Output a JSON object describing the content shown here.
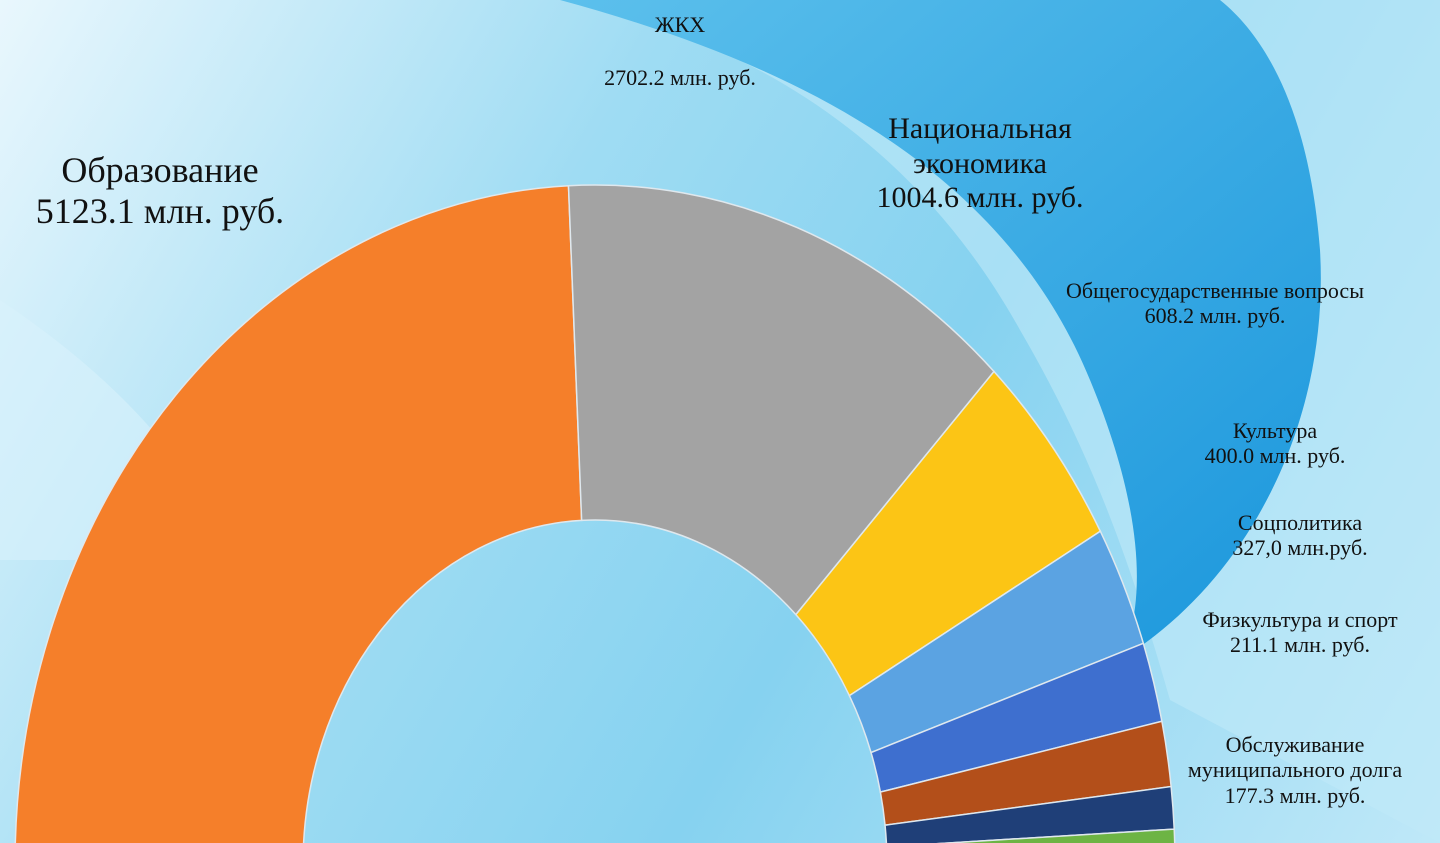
{
  "chart_data": {
    "type": "donut",
    "categories": [
      "Образование",
      "ЖКХ",
      "Национальная экономика",
      "Общегосударственные вопросы",
      "Культура",
      "Соцполитика",
      "Физкультура и спорт",
      "Обслуживание муниципального долга"
    ],
    "values": [
      5123.1,
      2702.2,
      1004.6,
      608.2,
      400.0,
      327.0,
      211.1,
      177.3
    ],
    "value_labels": [
      "5123.1 млн. руб.",
      "2702.2 млн. руб.",
      "1004.6 млн. руб.",
      "608.2 млн. руб.",
      "400.0 млн. руб.",
      "327,0 млн.руб.",
      "211.1 млн. руб.",
      "177.3 млн. руб."
    ],
    "colors": [
      "#f57f2a",
      "#a3a3a3",
      "#fcc515",
      "#5ba3e2",
      "#3e6fcf",
      "#b34f1a",
      "#1f3f78",
      "#6db444"
    ]
  }
}
